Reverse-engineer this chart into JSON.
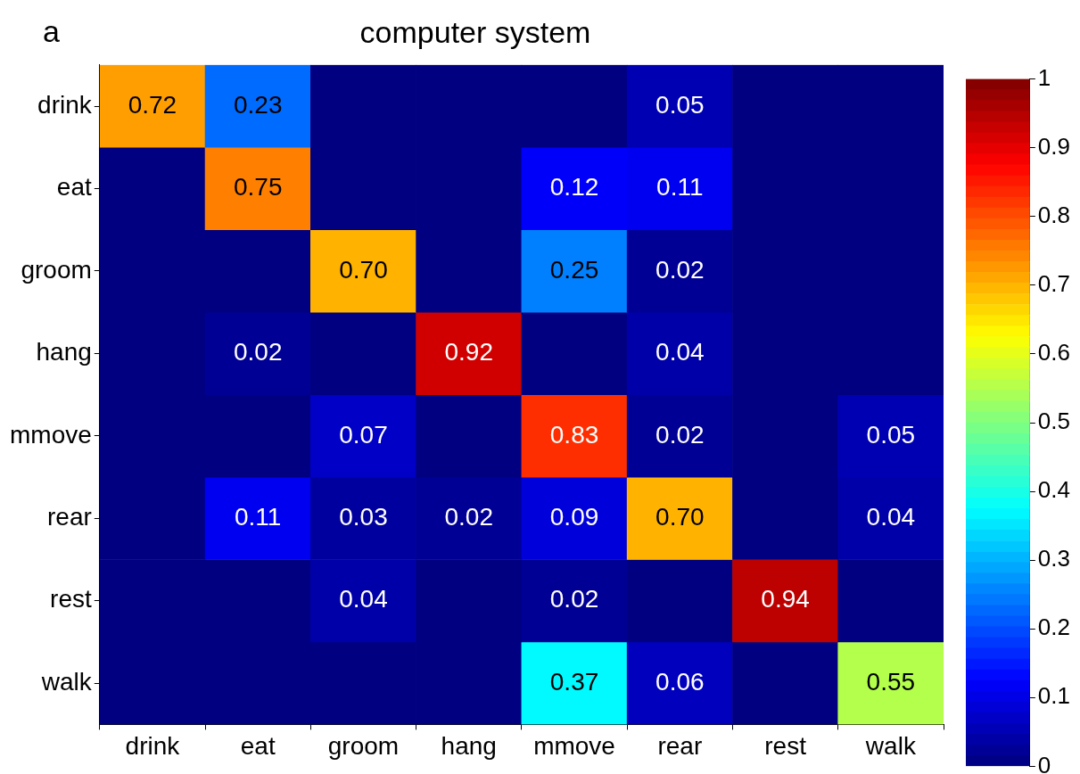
{
  "chart_data": {
    "type": "heatmap",
    "title": "computer system",
    "annotations": [
      "a"
    ],
    "categories": [
      "drink",
      "eat",
      "groom",
      "hang",
      "mmove",
      "rear",
      "rest",
      "walk"
    ],
    "y_categories": [
      "drink",
      "eat",
      "groom",
      "hang",
      "mmove",
      "rear",
      "rest",
      "walk"
    ],
    "cells": [
      [
        0.72,
        0.23,
        0,
        0,
        0,
        0.05,
        0,
        0
      ],
      [
        0,
        0.75,
        0,
        0,
        0.12,
        0.11,
        0,
        0
      ],
      [
        0,
        0,
        0.7,
        0,
        0.25,
        0.02,
        0,
        0
      ],
      [
        0,
        0.02,
        0,
        0.92,
        0,
        0.04,
        0,
        0
      ],
      [
        0,
        0,
        0.07,
        0,
        0.83,
        0.02,
        0,
        0.05
      ],
      [
        0,
        0.11,
        0.03,
        0.02,
        0.09,
        0.7,
        0,
        0.04
      ],
      [
        0,
        0,
        0.04,
        0,
        0.02,
        0,
        0.94,
        0
      ],
      [
        0,
        0,
        0,
        0,
        0.37,
        0.06,
        0,
        0.55
      ]
    ],
    "cell_labels": [
      [
        "0.72",
        "0.23",
        null,
        null,
        null,
        "0.05",
        null,
        null
      ],
      [
        null,
        "0.75",
        null,
        null,
        "0.12",
        "0.11",
        null,
        null
      ],
      [
        null,
        null,
        "0.70",
        null,
        "0.25",
        "0.02",
        null,
        null
      ],
      [
        null,
        "0.02",
        null,
        "0.92",
        null,
        "0.04",
        null,
        null
      ],
      [
        null,
        null,
        "0.07",
        null,
        "0.83",
        "0.02",
        null,
        "0.05"
      ],
      [
        null,
        "0.11",
        "0.03",
        "0.02",
        "0.09",
        "0.70",
        null,
        "0.04"
      ],
      [
        null,
        null,
        "0.04",
        null,
        "0.02",
        null,
        "0.94",
        null
      ],
      [
        null,
        null,
        null,
        null,
        "0.37",
        "0.06",
        null,
        "0.55"
      ]
    ],
    "clim": [
      0,
      1
    ],
    "cticks": [
      0,
      0.1,
      0.2,
      0.3,
      0.4,
      0.5,
      0.6,
      0.7,
      0.8,
      0.9,
      1
    ]
  }
}
